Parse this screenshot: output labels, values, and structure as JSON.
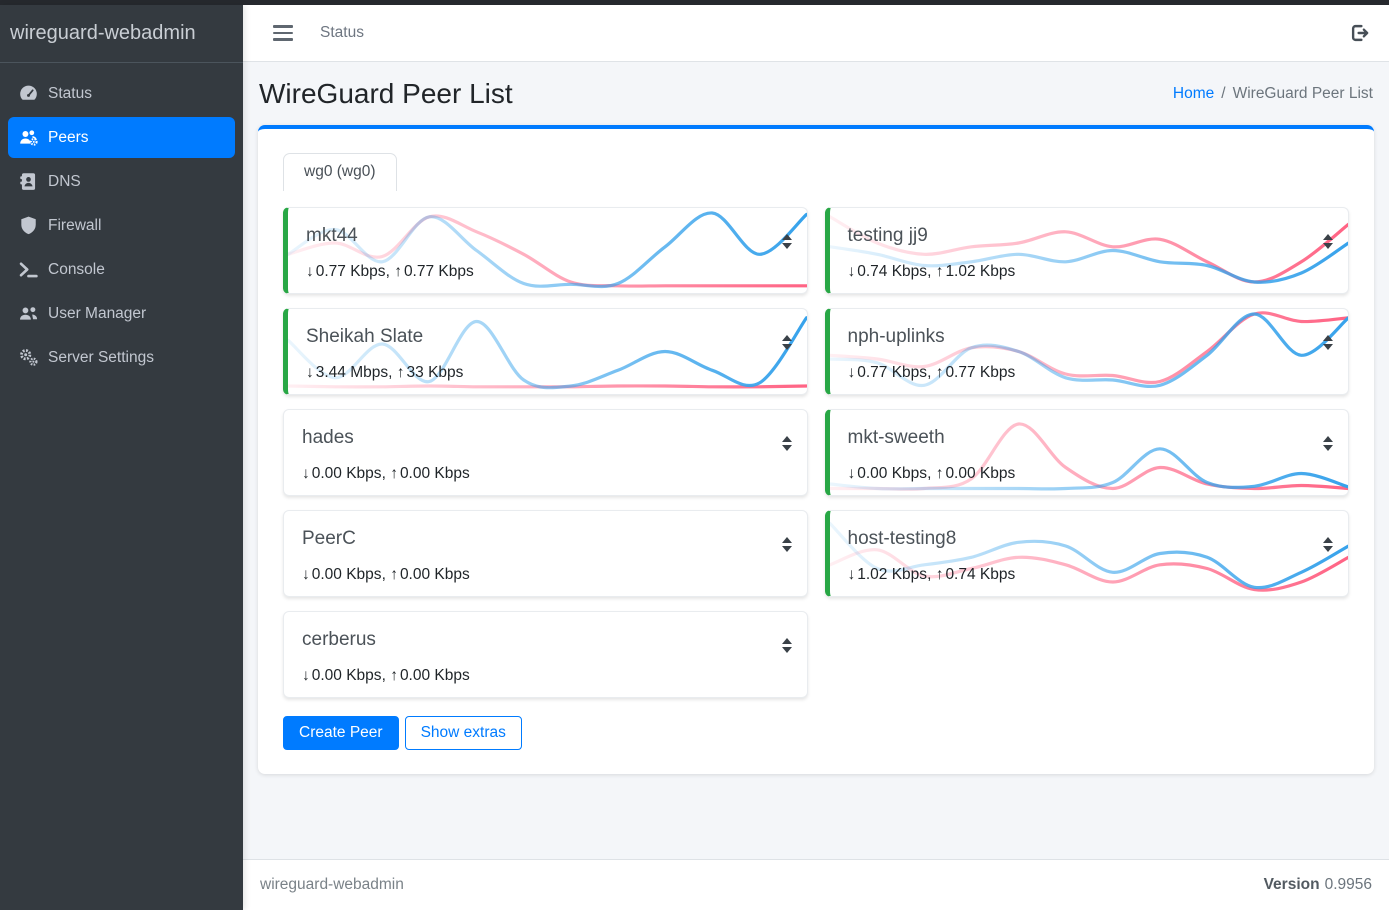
{
  "app": {
    "brand": "wireguard-webadmin"
  },
  "topbar": {
    "nav_link": "Status"
  },
  "sidebar": {
    "items": [
      {
        "label": "Status",
        "icon": "tachometer-icon",
        "active": false
      },
      {
        "label": "Peers",
        "icon": "users-gear-icon",
        "active": true
      },
      {
        "label": "DNS",
        "icon": "address-book-icon",
        "active": false
      },
      {
        "label": "Firewall",
        "icon": "shield-icon",
        "active": false
      },
      {
        "label": "Console",
        "icon": "terminal-icon",
        "active": false
      },
      {
        "label": "User Manager",
        "icon": "users-icon",
        "active": false
      },
      {
        "label": "Server Settings",
        "icon": "gears-icon",
        "active": false
      }
    ]
  },
  "page": {
    "title": "WireGuard Peer List",
    "breadcrumb": {
      "home": "Home",
      "separator": "/",
      "current": "WireGuard Peer List"
    }
  },
  "tabs": [
    {
      "label": "wg0 (wg0)",
      "active": true
    }
  ],
  "buttons": {
    "create_peer": "Create Peer",
    "show_extras": "Show extras"
  },
  "icons": {
    "down_arrow": "↓",
    "up_arrow": "↑"
  },
  "colors": {
    "accent": "#007bff",
    "online_green": "#28a745",
    "spark_download_blue": "#36a2eb",
    "spark_upload_pink": "#ff6384"
  },
  "peers": [
    {
      "name": "mkt44",
      "down": "0.77 Kbps",
      "up": "0.77 Kbps",
      "online": true,
      "spark": {
        "rx": [
          0.45,
          0.78,
          0.35,
          0.95,
          0.5,
          0.06,
          0.05,
          0.06,
          0.55,
          1.0,
          0.45,
          0.98
        ],
        "tx": [
          0.45,
          0.6,
          0.42,
          0.95,
          0.75,
          0.45,
          0.08,
          0.03,
          0.03,
          0.03,
          0.03,
          0.03
        ]
      }
    },
    {
      "name": "testing jj9",
      "down": "0.74 Kbps",
      "up": "1.02 Kbps",
      "online": true,
      "spark": {
        "rx": [
          0.55,
          0.45,
          0.3,
          0.35,
          0.45,
          0.35,
          0.5,
          0.35,
          0.3,
          0.08,
          0.2,
          0.6
        ],
        "tx": [
          0.95,
          0.6,
          0.45,
          0.55,
          0.6,
          0.75,
          0.55,
          0.65,
          0.35,
          0.08,
          0.35,
          0.85
        ]
      }
    },
    {
      "name": "Sheikah Slate",
      "down": "3.44 Mbps",
      "up": "33 Kbps",
      "online": true,
      "spark": {
        "rx": [
          0.65,
          0.15,
          0.6,
          0.1,
          0.9,
          0.12,
          0.04,
          0.25,
          0.5,
          0.25,
          0.08,
          0.95
        ],
        "tx": [
          0.04,
          0.03,
          0.03,
          0.04,
          0.03,
          0.03,
          0.03,
          0.04,
          0.04,
          0.03,
          0.03,
          0.04
        ]
      }
    },
    {
      "name": "nph-uplinks",
      "down": "0.77 Kbps",
      "up": "0.77 Kbps",
      "online": true,
      "spark": {
        "rx": [
          0.4,
          0.35,
          0.05,
          0.55,
          0.5,
          0.15,
          0.12,
          0.05,
          0.45,
          1.0,
          0.45,
          0.95
        ],
        "tx": [
          0.45,
          0.4,
          0.3,
          0.55,
          0.5,
          0.2,
          0.18,
          0.1,
          0.5,
          1.0,
          0.9,
          0.95
        ]
      }
    },
    {
      "name": "hades",
      "down": "0.00 Kbps",
      "up": "0.00 Kbps",
      "online": false,
      "spark": {
        "rx": [
          0.02,
          0.02,
          0.02,
          0.02,
          0.02,
          0.02,
          0.02,
          0.02,
          0.02,
          0.02,
          0.02,
          0.02
        ],
        "tx": [
          0.02,
          0.02,
          0.02,
          0.02,
          0.02,
          0.02,
          0.02,
          0.02,
          0.02,
          0.02,
          0.02,
          0.02
        ]
      }
    },
    {
      "name": "mkt-sweeth",
      "down": "0.00 Kbps",
      "up": "0.00 Kbps",
      "online": true,
      "spark": {
        "rx": [
          0.08,
          0.02,
          0.02,
          0.02,
          0.02,
          0.02,
          0.1,
          0.55,
          0.1,
          0.05,
          0.22,
          0.04
        ],
        "tx": [
          0.02,
          0.02,
          0.02,
          0.15,
          0.88,
          0.3,
          0.02,
          0.3,
          0.08,
          0.02,
          0.06,
          0.02
        ]
      }
    },
    {
      "name": "PeerC",
      "down": "0.00 Kbps",
      "up": "0.00 Kbps",
      "online": false,
      "spark": {
        "rx": [
          0.02,
          0.02,
          0.02,
          0.02,
          0.02,
          0.02,
          0.02,
          0.02,
          0.02,
          0.02,
          0.02,
          0.02
        ],
        "tx": [
          0.02,
          0.02,
          0.02,
          0.02,
          0.02,
          0.02,
          0.02,
          0.02,
          0.02,
          0.02,
          0.02,
          0.02
        ]
      }
    },
    {
      "name": "host-testing8",
      "down": "1.02 Kbps",
      "up": "0.74 Kbps",
      "online": true,
      "spark": {
        "rx": [
          0.9,
          0.3,
          0.35,
          0.45,
          0.65,
          0.6,
          0.25,
          0.5,
          0.45,
          0.05,
          0.25,
          0.6
        ],
        "tx": [
          0.35,
          0.55,
          0.2,
          0.3,
          0.45,
          0.35,
          0.12,
          0.35,
          0.3,
          0.02,
          0.12,
          0.45
        ]
      }
    },
    {
      "name": "cerberus",
      "down": "0.00 Kbps",
      "up": "0.00 Kbps",
      "online": false,
      "spark": {
        "rx": [
          0.02,
          0.02,
          0.02,
          0.02,
          0.02,
          0.02,
          0.02,
          0.02,
          0.02,
          0.02,
          0.02,
          0.02
        ],
        "tx": [
          0.02,
          0.02,
          0.02,
          0.02,
          0.02,
          0.02,
          0.02,
          0.02,
          0.02,
          0.02,
          0.02,
          0.02
        ]
      }
    }
  ],
  "footer": {
    "brand": "wireguard-webadmin",
    "version_label": "Version",
    "version": "0.9956"
  }
}
